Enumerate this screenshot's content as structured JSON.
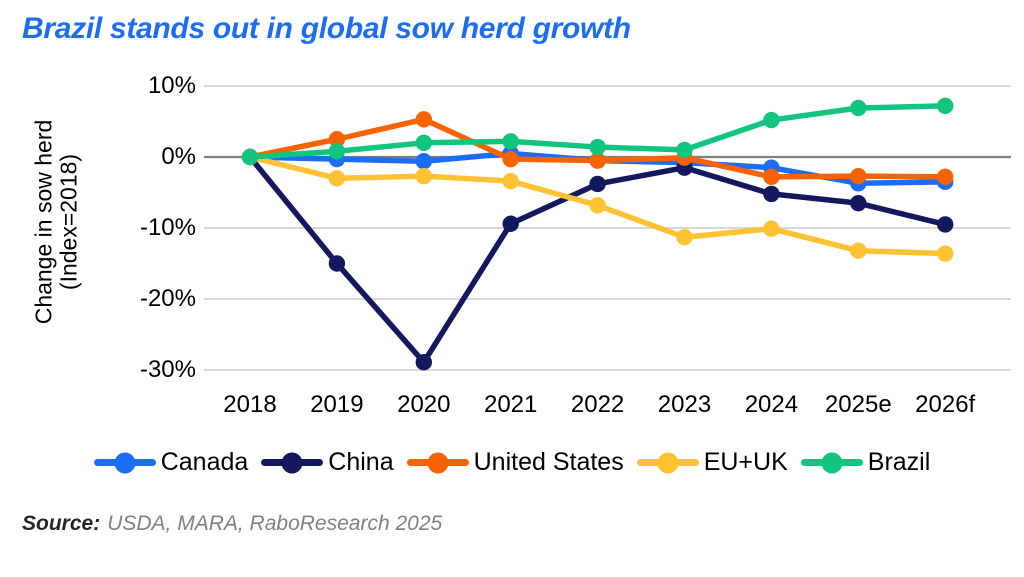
{
  "header": {
    "title": "Brazil stands out in global sow herd growth",
    "title_color": "#1C6DF2"
  },
  "footer": {
    "source_label": "Source:",
    "source_text": "USDA, MARA, RaboResearch 2025"
  },
  "chart_data": {
    "type": "line",
    "title": "Brazil stands out in global sow herd growth",
    "categories": [
      "2018",
      "2019",
      "2020",
      "2021",
      "2022",
      "2023",
      "2024",
      "2025e",
      "2026f"
    ],
    "series": [
      {
        "name": "Canada",
        "color": "#1B6EF3",
        "values": [
          0,
          -0.3,
          -0.6,
          0.5,
          -0.5,
          -0.8,
          -1.5,
          -3.7,
          -3.5
        ]
      },
      {
        "name": "China",
        "color": "#13185F",
        "values": [
          0,
          -15.0,
          -28.9,
          -9.4,
          -3.8,
          -1.5,
          -5.2,
          -6.5,
          -9.5
        ]
      },
      {
        "name": "United States",
        "color": "#F76300",
        "values": [
          0,
          2.5,
          5.3,
          -0.3,
          -0.5,
          -0.1,
          -2.8,
          -2.7,
          -2.8
        ]
      },
      {
        "name": "EU+UK",
        "color": "#FFC233",
        "values": [
          0,
          -3.0,
          -2.7,
          -3.4,
          -6.8,
          -11.3,
          -10.1,
          -13.2,
          -13.6
        ]
      },
      {
        "name": "Brazil",
        "color": "#12C57F",
        "values": [
          0,
          0.8,
          2.0,
          2.2,
          1.4,
          1.0,
          5.2,
          6.9,
          7.2
        ]
      }
    ],
    "ylabel_line1": "Change in sow herd",
    "ylabel_line2": "(Index=2018)",
    "xlabel": "",
    "yticks": [
      {
        "label": "10%",
        "value": 10
      },
      {
        "label": "0%",
        "value": 0
      },
      {
        "label": "-10%",
        "value": -10
      },
      {
        "label": "-20%",
        "value": -20
      },
      {
        "label": "-30%",
        "value": -30
      }
    ],
    "ylim": [
      -33,
      12
    ],
    "grid": "horizontal",
    "grid_color": "#D9D9D9",
    "zero_line_color": "#808080",
    "legend_position": "bottom"
  }
}
